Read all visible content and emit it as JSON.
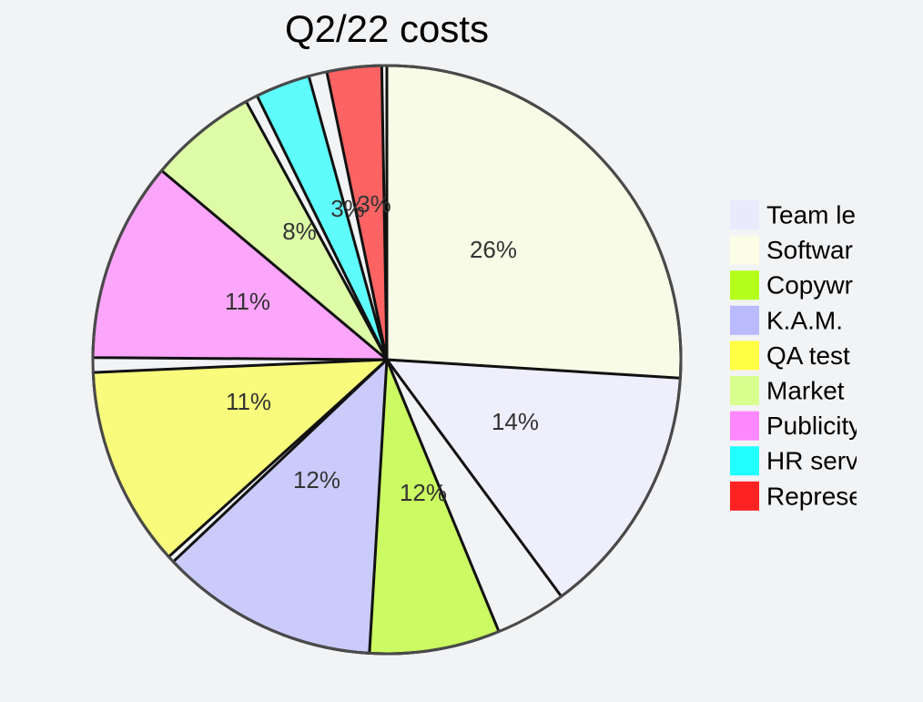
{
  "chart_data": {
    "type": "pie",
    "title": "Q2/22 costs",
    "slices": [
      {
        "legend": "Team le",
        "value": 14,
        "label": "14%",
        "color": "#eeeefc",
        "swatch": "#eaeafd"
      },
      {
        "legend": "Softwar",
        "value": 26,
        "label": "26%",
        "color": "#f8fbe6",
        "swatch": "#fcfde6"
      },
      {
        "legend": "Copywr",
        "value": 12,
        "label": "12%",
        "color": "#cbfa62",
        "swatch": "#b3ff1a"
      },
      {
        "legend": "K.A.M.",
        "value": 12,
        "label": "12%",
        "color": "#cacafb",
        "swatch": "#babafe"
      },
      {
        "legend": "QA test",
        "value": 11,
        "label": "11%",
        "color": "#f8fb7c",
        "swatch": "#ffff44"
      },
      {
        "legend": "Market",
        "value": 8,
        "label": "8%",
        "color": "#defba7",
        "swatch": "#d8fe8e"
      },
      {
        "legend": "Publicity",
        "value": 11,
        "label": "11%",
        "color": "#fba5fb",
        "swatch": "#ff88ff"
      },
      {
        "legend": "HR serv",
        "value": 3,
        "label": "3%",
        "color": "#5ffcfd",
        "swatch": "#22ffff"
      },
      {
        "legend": "Represe",
        "value": 3,
        "label": "3%",
        "color": "#fd6363",
        "swatch": "#ff2222"
      }
    ],
    "legend_position": "right"
  }
}
